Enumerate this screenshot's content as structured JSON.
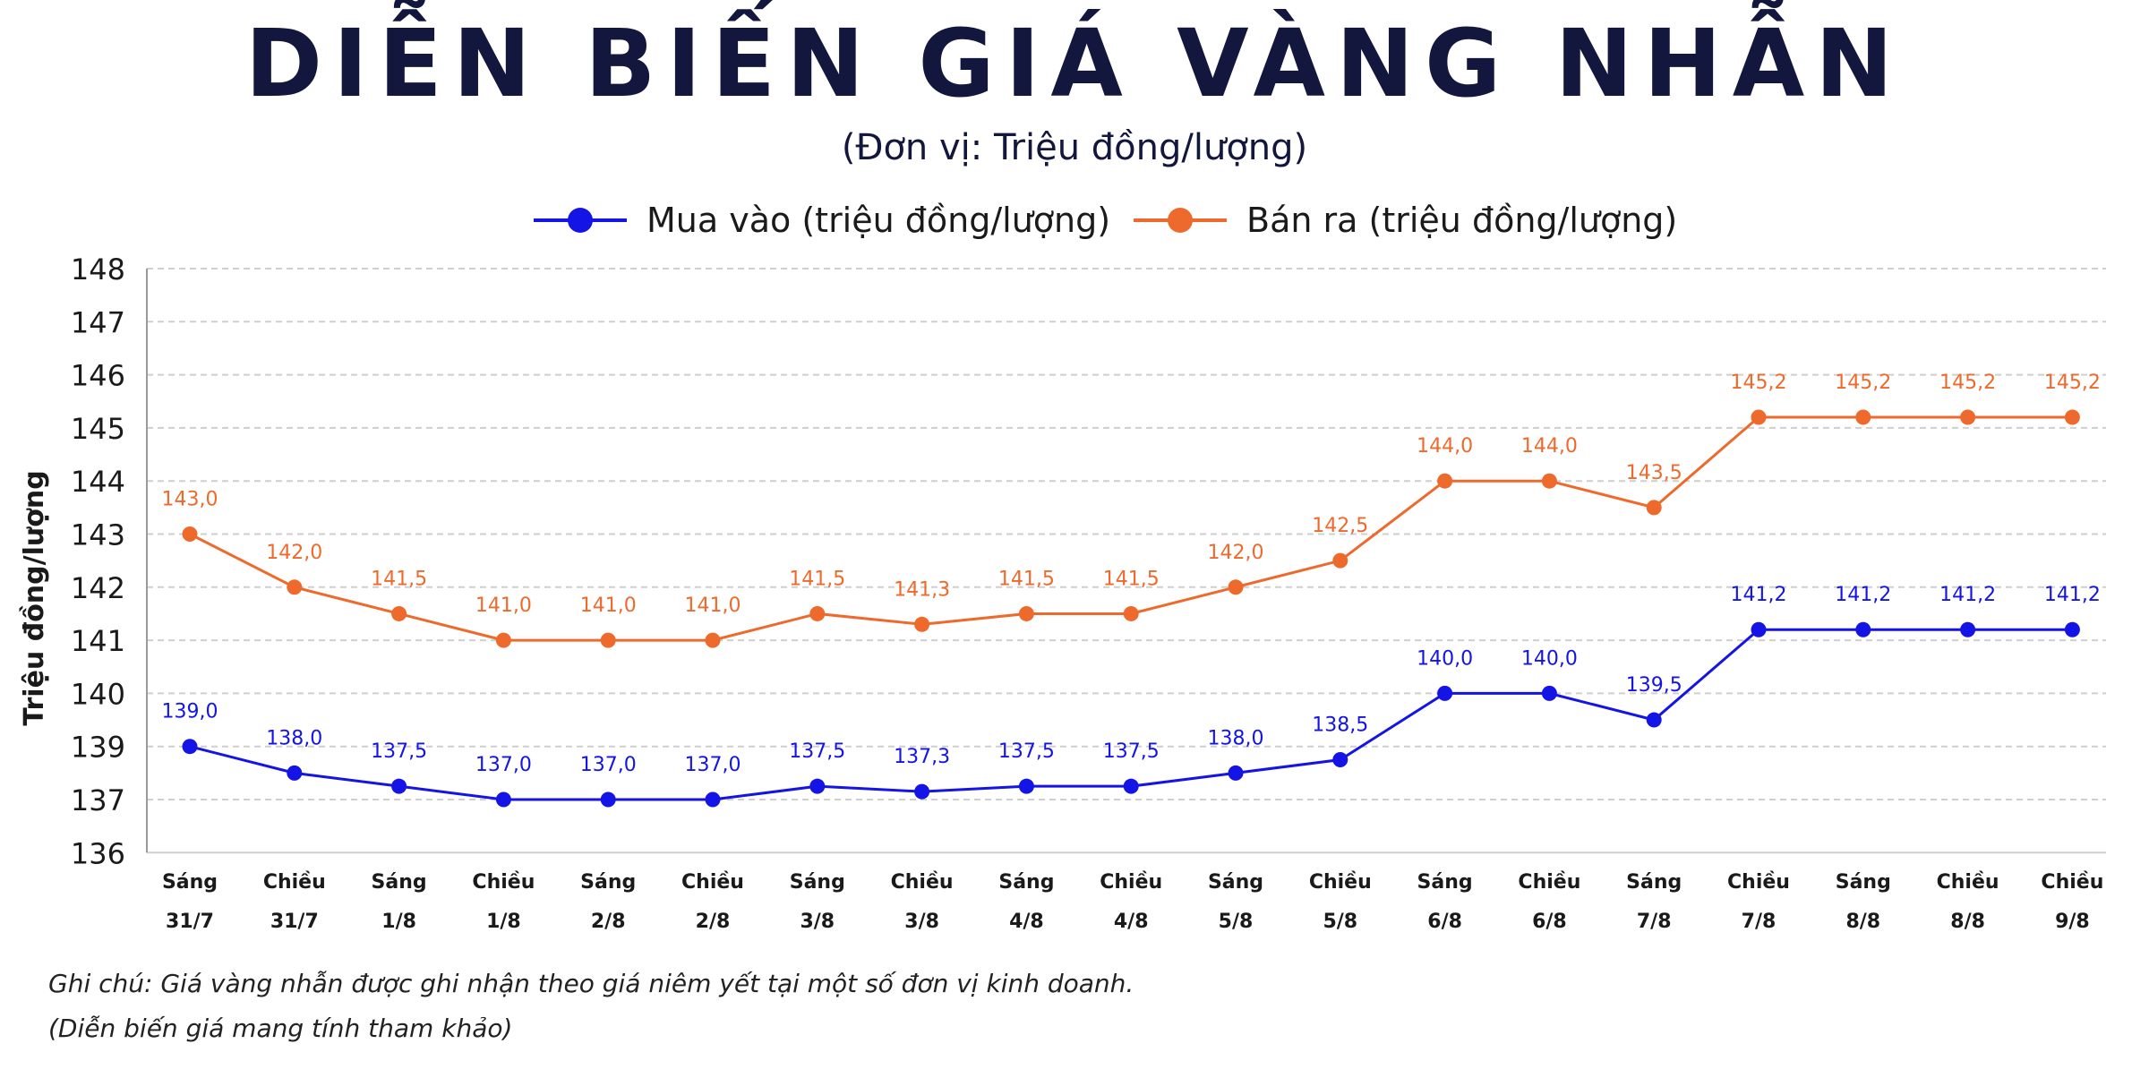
{
  "header": {
    "title": "DIỄN BIẾN GIÁ VÀNG NHẪN",
    "subtitle": "(Đơn vị: Triệu đồng/lượng)"
  },
  "notes": {
    "line1": "Ghi chú: Giá vàng nhẫn được ghi nhận theo giá niêm yết tại một số đơn vị kinh doanh.",
    "line2": "(Diễn biến giá mang tính tham khảo)"
  },
  "chart_data": {
    "type": "line",
    "title": "DIỄN BIẾN GIÁ VÀNG NHẪN",
    "subtitle": "(Đơn vị: Triệu đồng/lượng)",
    "ylabel": "Triệu  đồng/lượng",
    "xlabel": "",
    "y_ticks": [
      136,
      137,
      139,
      140,
      141,
      142,
      143,
      144,
      145,
      146,
      147,
      148
    ],
    "grid": true,
    "legend_position": "top-center",
    "categories": [
      [
        "Sáng",
        "31/7"
      ],
      [
        "Chiều",
        "31/7"
      ],
      [
        "Sáng",
        "1/8"
      ],
      [
        "Chiều",
        "1/8"
      ],
      [
        "Sáng",
        "2/8"
      ],
      [
        "Chiều",
        "2/8"
      ],
      [
        "Sáng",
        "3/8"
      ],
      [
        "Chiều",
        "3/8"
      ],
      [
        "Sáng",
        "4/8"
      ],
      [
        "Chiều",
        "4/8"
      ],
      [
        "Sáng",
        "5/8"
      ],
      [
        "Chiều",
        "5/8"
      ],
      [
        "Sáng",
        "6/8"
      ],
      [
        "Chiều",
        "6/8"
      ],
      [
        "Sáng",
        "7/8"
      ],
      [
        "Chiều",
        "7/8"
      ],
      [
        "Sáng",
        "8/8"
      ],
      [
        "Chiều",
        "8/8"
      ],
      [
        "Chiều",
        "9/8"
      ]
    ],
    "series": [
      {
        "name": "Mua vào (triệu đồng/lượng)",
        "color": "#1414e6",
        "values": [
          139.0,
          138.0,
          137.5,
          137.0,
          137.0,
          137.0,
          137.5,
          137.3,
          137.5,
          137.5,
          138.0,
          138.5,
          140.0,
          140.0,
          139.5,
          141.2,
          141.2,
          141.2,
          141.2
        ],
        "labels": [
          "139,0",
          "138,0",
          "137,5",
          "137,0",
          "137,0",
          "137,0",
          "137,5",
          "137,3",
          "137,5",
          "137,5",
          "138,0",
          "138,5",
          "140,0",
          "140,0",
          "139,5",
          "141,2",
          "141,2",
          "141,2",
          "141,2"
        ]
      },
      {
        "name": "Bán ra (triệu đồng/lượng)",
        "color": "#ee6a2c",
        "values": [
          143.0,
          142.0,
          141.5,
          141.0,
          141.0,
          141.0,
          141.5,
          141.3,
          141.5,
          141.5,
          142.0,
          142.5,
          144.0,
          144.0,
          143.5,
          145.2,
          145.2,
          145.2,
          145.2
        ],
        "labels": [
          "143,0",
          "142,0",
          "141,5",
          "141,0",
          "141,0",
          "141,0",
          "141,5",
          "141,3",
          "141,5",
          "141,5",
          "142,0",
          "142,5",
          "144,0",
          "144,0",
          "143,5",
          "145,2",
          "145,2",
          "145,2",
          "145,2"
        ]
      }
    ]
  }
}
